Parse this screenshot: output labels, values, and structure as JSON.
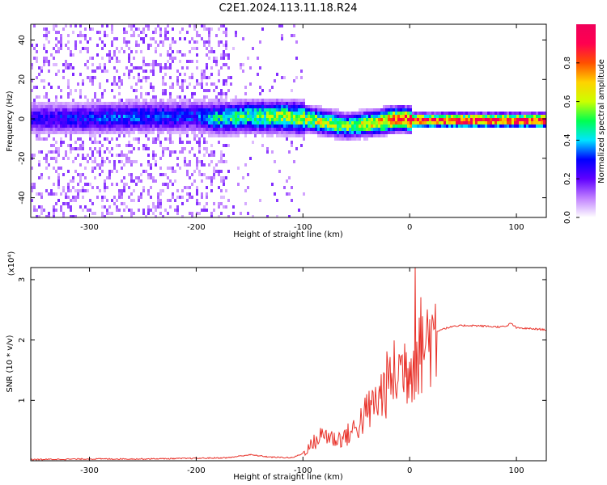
{
  "title": "C2E1.2024.113.11.18.R24",
  "chart_data": [
    {
      "type": "heatmap",
      "xlabel": "Height of straight line (km)",
      "ylabel": "Frequency (Hz)",
      "xlim": [
        -355,
        128
      ],
      "ylim": [
        -50,
        48
      ],
      "xticks": [
        -300,
        -200,
        -100,
        0,
        100
      ],
      "xtick_labels": [
        "-300",
        "-200",
        "-100",
        "0",
        "100"
      ],
      "yticks": [
        -40,
        -20,
        0,
        20,
        40
      ],
      "ytick_labels": [
        "-40",
        "-20",
        "0",
        "20",
        "40"
      ],
      "colorbar": {
        "label": "Normalized spectral amplitude",
        "range": [
          0,
          1
        ],
        "ticks": [
          0.0,
          0.2,
          0.4,
          0.6,
          0.8
        ],
        "tick_labels": [
          "0.0",
          "0.2",
          "0.4",
          "0.6",
          "0.8"
        ],
        "colors": [
          "#ffffff",
          "#c080ff",
          "#6000ff",
          "#0000ff",
          "#00e5ff",
          "#00ff50",
          "#ccff00",
          "#ffd200",
          "#ff5000",
          "#ff0050",
          "#f0005a"
        ]
      },
      "ridge": {
        "x": [
          -355,
          -300,
          -250,
          -200,
          -180,
          -150,
          -120,
          -100,
          -80,
          -60,
          -45,
          -30,
          -20,
          -10,
          0,
          50,
          128
        ],
        "center_hz": [
          1,
          1,
          2,
          2,
          1,
          2,
          2,
          1,
          -1,
          -3,
          -2,
          -1,
          0,
          1,
          0,
          0,
          0
        ],
        "amplitude": [
          0.25,
          0.3,
          0.32,
          0.3,
          0.45,
          0.5,
          0.55,
          0.6,
          0.62,
          0.55,
          0.6,
          0.7,
          0.8,
          0.75,
          0.9,
          0.95,
          0.92
        ]
      }
    },
    {
      "type": "line",
      "xlabel": "Height of straight line (km)",
      "ylabel": "SNR (10 * v/v)",
      "scale_label": "(x10⁴)",
      "xlim": [
        -355,
        128
      ],
      "ylim": [
        0,
        3.2
      ],
      "xticks": [
        -300,
        -200,
        -100,
        0,
        100
      ],
      "xtick_labels": [
        "-300",
        "-200",
        "-100",
        "0",
        "100"
      ],
      "yticks": [
        1,
        2,
        3
      ],
      "ytick_labels": [
        "1",
        "2",
        "3"
      ],
      "series": [
        {
          "color": "#e8322a",
          "x": [
            -355,
            -300,
            -250,
            -200,
            -170,
            -150,
            -130,
            -110,
            -100,
            -90,
            -80,
            -70,
            -60,
            -50,
            -40,
            -30,
            -20,
            -10,
            0,
            5,
            10,
            20,
            30,
            40,
            50,
            60,
            70,
            80,
            90,
            95,
            100,
            110,
            120,
            128
          ],
          "y": [
            0.02,
            0.03,
            0.03,
            0.04,
            0.05,
            0.1,
            0.06,
            0.05,
            0.12,
            0.3,
            0.45,
            0.35,
            0.4,
            0.55,
            0.8,
            1.0,
            1.3,
            1.5,
            1.6,
            1.7,
            1.9,
            2.1,
            2.18,
            2.22,
            2.24,
            2.24,
            2.23,
            2.22,
            2.22,
            2.28,
            2.2,
            2.19,
            2.18,
            2.17
          ]
        }
      ]
    }
  ]
}
